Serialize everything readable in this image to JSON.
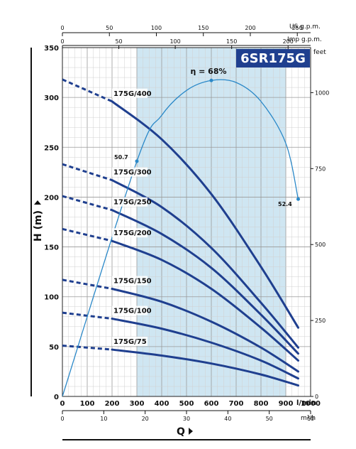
{
  "chart_data": {
    "type": "line",
    "model": "6SR175G",
    "xlabel": "Q",
    "ylabel": "H (m)",
    "x_unit": "l/min",
    "x_unit_m3h": "m³/h",
    "x_unit_us": "US g.p.m.",
    "x_unit_imp": "Imp g.p.m.",
    "y_unit_right": "feet",
    "xlim": [
      0,
      1000
    ],
    "ylim": [
      0,
      350
    ],
    "x_ticks": [
      "0",
      "100",
      "200",
      "300",
      "400",
      "500",
      "600",
      "700",
      "800",
      "900",
      "1000"
    ],
    "y_ticks": [
      "0",
      "50",
      "100",
      "150",
      "200",
      "250",
      "300",
      "350"
    ],
    "m3h_ticks": [
      "0",
      "10",
      "20",
      "30",
      "40",
      "50",
      "60"
    ],
    "us_ticks": [
      "0",
      "50",
      "100",
      "150",
      "200",
      "250"
    ],
    "imp_ticks": [
      "0",
      "50",
      "100",
      "150",
      "200"
    ],
    "feet_ticks": [
      "0",
      "250",
      "500",
      "750",
      "1000"
    ],
    "recommended_range": [
      300,
      900
    ],
    "efficiency_label": "η = 68%",
    "efficiency_left_label": "50.7",
    "efficiency_right_label": "52.4",
    "efficiency_curve": {
      "x": [
        0,
        300,
        400,
        500,
        600,
        700,
        800,
        900,
        950
      ],
      "y": [
        0,
        236,
        282,
        307,
        317,
        315,
        296,
        254,
        198
      ]
    },
    "series": [
      {
        "name": "175G/400",
        "x": [
          0,
          200,
          400,
          600,
          800,
          950
        ],
        "y": [
          318,
          296,
          258,
          203,
          130,
          69
        ]
      },
      {
        "name": "175G/300",
        "x": [
          0,
          200,
          400,
          600,
          800,
          950
        ],
        "y": [
          233,
          217,
          190,
          149,
          94,
          49
        ]
      },
      {
        "name": "175G/250",
        "x": [
          0,
          200,
          400,
          600,
          800,
          950
        ],
        "y": [
          201,
          187,
          163,
          129,
          82,
          43
        ]
      },
      {
        "name": "175G/200",
        "x": [
          0,
          200,
          400,
          600,
          800,
          950
        ],
        "y": [
          168,
          156,
          137,
          108,
          69,
          36
        ]
      },
      {
        "name": "175G/150",
        "x": [
          0,
          200,
          400,
          600,
          800,
          950
        ],
        "y": [
          117,
          108,
          95,
          75,
          49,
          25
        ]
      },
      {
        "name": "175G/100",
        "x": [
          0,
          200,
          400,
          600,
          800,
          950
        ],
        "y": [
          84,
          78,
          68,
          54,
          36,
          18
        ]
      },
      {
        "name": "175G/75",
        "x": [
          0,
          200,
          400,
          600,
          800,
          950
        ],
        "y": [
          51,
          47,
          41,
          33,
          22,
          11
        ]
      }
    ]
  }
}
